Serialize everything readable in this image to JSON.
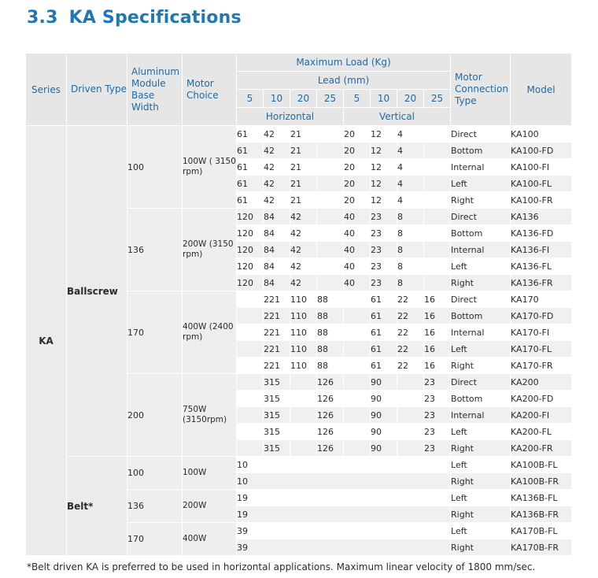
{
  "section": {
    "number": "3.3",
    "title": "KA Specifications"
  },
  "headers": {
    "series": "Series",
    "driven_type": "Driven Type",
    "base_width": "Aluminum Module Base Width",
    "motor_choice": "Motor Choice",
    "max_load": "Maximum Load (Kg)",
    "lead": "Lead (mm)",
    "leads": [
      "5",
      "10",
      "20",
      "25",
      "5",
      "10",
      "20",
      "25"
    ],
    "horizontal": "Horizontal",
    "vertical": "Vertical",
    "connection": "Motor Connection Type",
    "model": "Model"
  },
  "series": "KA",
  "groups": [
    {
      "driven": "Ballscrew",
      "width": "100",
      "motor": "100W ( 3150 rpm)",
      "rows": [
        {
          "v": [
            "61",
            "42",
            "21",
            "",
            "20",
            "12",
            "4",
            ""
          ],
          "conn": "Direct",
          "model": "KA100"
        },
        {
          "v": [
            "61",
            "42",
            "21",
            "",
            "20",
            "12",
            "4",
            ""
          ],
          "conn": "Bottom",
          "model": "KA100-FD"
        },
        {
          "v": [
            "61",
            "42",
            "21",
            "",
            "20",
            "12",
            "4",
            ""
          ],
          "conn": "Internal",
          "model": "KA100-FI"
        },
        {
          "v": [
            "61",
            "42",
            "21",
            "",
            "20",
            "12",
            "4",
            ""
          ],
          "conn": "Left",
          "model": "KA100-FL"
        },
        {
          "v": [
            "61",
            "42",
            "21",
            "",
            "20",
            "12",
            "4",
            ""
          ],
          "conn": "Right",
          "model": "KA100-FR"
        }
      ]
    },
    {
      "driven": "Ballscrew",
      "width": "136",
      "motor": "200W (3150 rpm)",
      "rows": [
        {
          "v": [
            "120",
            "84",
            "42",
            "",
            "40",
            "23",
            "8",
            ""
          ],
          "conn": "Direct",
          "model": "KA136"
        },
        {
          "v": [
            "120",
            "84",
            "42",
            "",
            "40",
            "23",
            "8",
            ""
          ],
          "conn": "Bottom",
          "model": "KA136-FD"
        },
        {
          "v": [
            "120",
            "84",
            "42",
            "",
            "40",
            "23",
            "8",
            ""
          ],
          "conn": "Internal",
          "model": "KA136-FI"
        },
        {
          "v": [
            "120",
            "84",
            "42",
            "",
            "40",
            "23",
            "8",
            ""
          ],
          "conn": "Left",
          "model": "KA136-FL"
        },
        {
          "v": [
            "120",
            "84",
            "42",
            "",
            "40",
            "23",
            "8",
            ""
          ],
          "conn": "Right",
          "model": "KA136-FR"
        }
      ]
    },
    {
      "driven": "Ballscrew",
      "width": "170",
      "motor": "400W (2400 rpm)",
      "rows": [
        {
          "v": [
            "",
            "221",
            "110",
            "88",
            "",
            "61",
            "22",
            "16"
          ],
          "conn": "Direct",
          "model": "KA170"
        },
        {
          "v": [
            "",
            "221",
            "110",
            "88",
            "",
            "61",
            "22",
            "16"
          ],
          "conn": "Bottom",
          "model": "KA170-FD"
        },
        {
          "v": [
            "",
            "221",
            "110",
            "88",
            "",
            "61",
            "22",
            "16"
          ],
          "conn": "Internal",
          "model": "KA170-FI"
        },
        {
          "v": [
            "",
            "221",
            "110",
            "88",
            "",
            "61",
            "22",
            "16"
          ],
          "conn": "Left",
          "model": "KA170-FL"
        },
        {
          "v": [
            "",
            "221",
            "110",
            "88",
            "",
            "61",
            "22",
            "16"
          ],
          "conn": "Right",
          "model": "KA170-FR"
        }
      ]
    },
    {
      "driven": "Ballscrew",
      "width": "200",
      "motor": "750W (3150rpm)",
      "rows": [
        {
          "v": [
            "",
            "315",
            "",
            "126",
            "",
            "90",
            "",
            "23"
          ],
          "conn": "Direct",
          "model": "KA200"
        },
        {
          "v": [
            "",
            "315",
            "",
            "126",
            "",
            "90",
            "",
            "23"
          ],
          "conn": "Bottom",
          "model": "KA200-FD"
        },
        {
          "v": [
            "",
            "315",
            "",
            "126",
            "",
            "90",
            "",
            "23"
          ],
          "conn": "Internal",
          "model": "KA200-FI"
        },
        {
          "v": [
            "",
            "315",
            "",
            "126",
            "",
            "90",
            "",
            "23"
          ],
          "conn": "Left",
          "model": "KA200-FL"
        },
        {
          "v": [
            "",
            "315",
            "",
            "126",
            "",
            "90",
            "",
            "23"
          ],
          "conn": "Right",
          "model": "KA200-FR"
        }
      ]
    },
    {
      "driven": "Belt*",
      "width": "100",
      "motor": "100W",
      "rows": [
        {
          "v": [
            "10"
          ],
          "conn": "Left",
          "model": "KA100B-FL"
        },
        {
          "v": [
            "10"
          ],
          "conn": "Right",
          "model": "KA100B-FR"
        }
      ]
    },
    {
      "driven": "Belt*",
      "width": "136",
      "motor": "200W",
      "rows": [
        {
          "v": [
            "19"
          ],
          "conn": "Left",
          "model": "KA136B-FL"
        },
        {
          "v": [
            "19"
          ],
          "conn": "Right",
          "model": "KA136B-FR"
        }
      ]
    },
    {
      "driven": "Belt*",
      "width": "170",
      "motor": "400W",
      "rows": [
        {
          "v": [
            "39"
          ],
          "conn": "Left",
          "model": "KA170B-FL"
        },
        {
          "v": [
            "39"
          ],
          "conn": "Right",
          "model": "KA170B-FR"
        }
      ]
    }
  ],
  "footnote": "*Belt driven KA is preferred to be used in horizontal applications. Maximum linear velocity of 1800 mm/sec."
}
